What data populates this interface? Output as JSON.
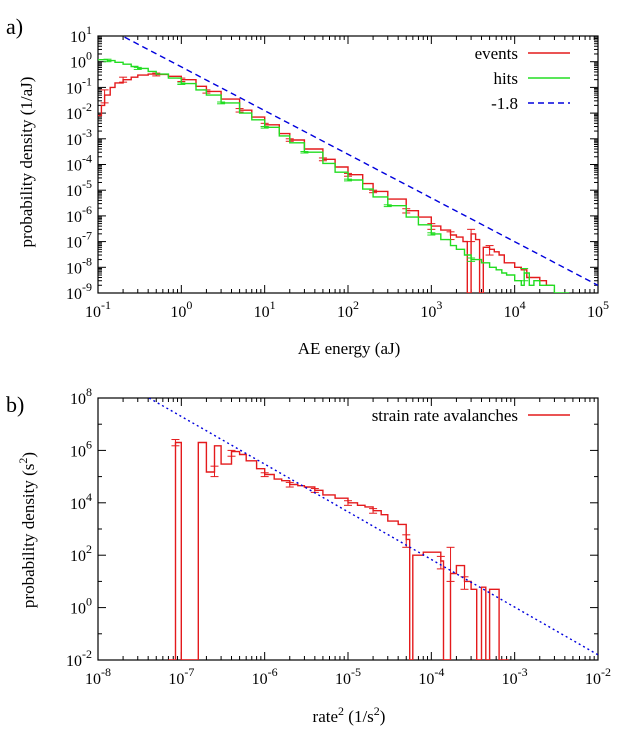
{
  "panels": [
    {
      "label": "a)",
      "xlabel": "AE energy (aJ)",
      "ylabel": "probability density (1/aJ)",
      "xlabel_sup": "",
      "xlabel_suffix": "",
      "ylabel_sup": "",
      "ylabel_suffix": ""
    },
    {
      "label": "b)",
      "xlabel": "rate",
      "xlabel_sup": "2",
      "xlabel_suffix": " (1/s",
      "xlabel_suffix_sup": "2",
      "xlabel_suffix_end": ")",
      "ylabel": "probability density (s",
      "ylabel_sup": "2",
      "ylabel_suffix": ")"
    }
  ],
  "chart_data": [
    {
      "type": "line",
      "panel": "a)",
      "xscale": "log",
      "yscale": "log",
      "xlim": [
        0.1,
        100000
      ],
      "ylim": [
        1e-09,
        10
      ],
      "xticks": [
        {
          "base": "10",
          "exp": "-1",
          "value": 0.1
        },
        {
          "base": "10",
          "exp": "0",
          "value": 1
        },
        {
          "base": "10",
          "exp": "1",
          "value": 10
        },
        {
          "base": "10",
          "exp": "2",
          "value": 100
        },
        {
          "base": "10",
          "exp": "3",
          "value": 1000
        },
        {
          "base": "10",
          "exp": "4",
          "value": 10000
        },
        {
          "base": "10",
          "exp": "5",
          "value": 100000
        }
      ],
      "yticks": [
        {
          "base": "10",
          "exp": "-9",
          "value": 1e-09
        },
        {
          "base": "10",
          "exp": "-8",
          "value": 1e-08
        },
        {
          "base": "10",
          "exp": "-7",
          "value": 1e-07
        },
        {
          "base": "10",
          "exp": "-6",
          "value": 1e-06
        },
        {
          "base": "10",
          "exp": "-5",
          "value": 1e-05
        },
        {
          "base": "10",
          "exp": "-4",
          "value": 0.0001
        },
        {
          "base": "10",
          "exp": "-3",
          "value": 0.001
        },
        {
          "base": "10",
          "exp": "-2",
          "value": 0.01
        },
        {
          "base": "10",
          "exp": "-1",
          "value": 0.1
        },
        {
          "base": "10",
          "exp": "0",
          "value": 1
        },
        {
          "base": "10",
          "exp": "1",
          "value": 10
        }
      ],
      "legend_position": "top-right",
      "series": [
        {
          "name": "events",
          "style": "step",
          "color": "#e41a1c",
          "x": [
            0.1,
            0.11,
            0.12,
            0.14,
            0.16,
            0.2,
            0.25,
            0.3,
            0.4,
            0.5,
            0.7,
            1,
            1.5,
            2,
            3,
            5,
            7,
            10,
            15,
            20,
            30,
            50,
            70,
            100,
            150,
            200,
            300,
            500,
            700,
            1000,
            1300,
            1700,
            2000,
            2400,
            2700,
            3000,
            3400,
            3800,
            4200,
            5000,
            5700,
            6500,
            7500,
            10000,
            12000,
            14000,
            17000,
            20000,
            24000
          ],
          "y": [
            0.008,
            0.02,
            0.05,
            0.1,
            0.15,
            0.2,
            0.25,
            0.3,
            0.33,
            0.32,
            0.27,
            0.2,
            0.11,
            0.07,
            0.035,
            0.013,
            0.007,
            0.0035,
            0.0016,
            0.0009,
            0.0004,
            0.00016,
            8e-05,
            4e-05,
            1.8e-05,
            9e-06,
            4.5e-06,
            1.6e-06,
            9e-07,
            4e-07,
            2.8e-07,
            1.8e-07,
            1.5e-07,
            1e-07,
            1e-09,
            2e-07,
            1.2e-07,
            1e-09,
            6e-08,
            5e-08,
            4e-08,
            3e-08,
            1.5e-08,
            1e-08,
            8e-09,
            4e-09,
            4e-09,
            3e-09,
            2e-09
          ],
          "error_bars": [
            {
              "x": 0.12,
              "low": 0.025,
              "high": 0.08
            },
            {
              "x": 0.2,
              "low": 0.16,
              "high": 0.25
            },
            {
              "x": 0.5,
              "low": 0.28,
              "high": 0.36
            },
            {
              "x": 1,
              "low": 0.17,
              "high": 0.23
            },
            {
              "x": 2,
              "low": 0.06,
              "high": 0.08
            },
            {
              "x": 5,
              "low": 0.011,
              "high": 0.015
            },
            {
              "x": 10,
              "low": 0.003,
              "high": 0.004
            },
            {
              "x": 20,
              "low": 0.0008,
              "high": 0.001
            },
            {
              "x": 50,
              "low": 0.00014,
              "high": 0.00018
            },
            {
              "x": 100,
              "low": 3.5e-05,
              "high": 4.5e-05
            },
            {
              "x": 200,
              "low": 8e-06,
              "high": 1e-05
            },
            {
              "x": 500,
              "low": 1.3e-06,
              "high": 1.9e-06
            },
            {
              "x": 1000,
              "low": 3e-07,
              "high": 5e-07
            },
            {
              "x": 1700,
              "low": 1.2e-07,
              "high": 2.4e-07
            },
            {
              "x": 3000,
              "low": 1e-07,
              "high": 3e-07
            },
            {
              "x": 5000,
              "low": 3e-08,
              "high": 7e-08
            }
          ]
        },
        {
          "name": "hits",
          "style": "step",
          "color": "#22dd22",
          "x": [
            0.1,
            0.13,
            0.16,
            0.2,
            0.25,
            0.3,
            0.4,
            0.5,
            0.7,
            1,
            1.5,
            2,
            3,
            5,
            7,
            10,
            15,
            20,
            30,
            50,
            70,
            100,
            150,
            200,
            300,
            500,
            700,
            1000,
            1300,
            1700,
            2000,
            2500,
            3000,
            4000,
            5000,
            6000,
            7000,
            8000,
            10000,
            12000,
            13000,
            15000,
            17000,
            20000,
            30000
          ],
          "y": [
            1.2,
            1.1,
            0.95,
            0.8,
            0.65,
            0.55,
            0.42,
            0.33,
            0.23,
            0.14,
            0.08,
            0.05,
            0.025,
            0.01,
            0.0055,
            0.0028,
            0.0013,
            0.0007,
            0.0003,
            0.00011,
            5e-05,
            2.5e-05,
            1.1e-05,
            5.5e-06,
            2.5e-06,
            9e-07,
            4.5e-07,
            2e-07,
            1.2e-07,
            7e-08,
            5e-08,
            3e-08,
            2e-08,
            1.5e-08,
            1e-08,
            8e-09,
            6e-09,
            5e-09,
            3e-09,
            2e-09,
            6e-09,
            2e-09,
            3e-09,
            2e-09,
            1e-09
          ],
          "error_bars": [
            {
              "x": 0.13,
              "low": 1.0,
              "high": 1.25
            },
            {
              "x": 0.3,
              "low": 0.5,
              "high": 0.6
            },
            {
              "x": 1,
              "low": 0.13,
              "high": 0.15
            },
            {
              "x": 3,
              "low": 0.023,
              "high": 0.027
            },
            {
              "x": 10,
              "low": 0.0026,
              "high": 0.003
            },
            {
              "x": 30,
              "low": 0.00028,
              "high": 0.00032
            },
            {
              "x": 100,
              "low": 2.3e-05,
              "high": 2.7e-05
            },
            {
              "x": 300,
              "low": 2.3e-06,
              "high": 2.7e-06
            },
            {
              "x": 1000,
              "low": 1.8e-07,
              "high": 2.2e-07
            },
            {
              "x": 3000,
              "low": 1.7e-08,
              "high": 2.3e-08
            },
            {
              "x": 13000,
              "low": 3e-09,
              "high": 9e-09
            }
          ]
        },
        {
          "name": "-1.8",
          "style": "dashed",
          "color": "#0000dd",
          "x": [
            0.1,
            100000
          ],
          "y": [
            31.4,
            1.98e-09
          ]
        }
      ]
    },
    {
      "type": "line",
      "panel": "b)",
      "xscale": "log",
      "yscale": "log",
      "xlim": [
        1e-08,
        0.01
      ],
      "ylim": [
        0.01,
        100000000
      ],
      "xticks": [
        {
          "base": "10",
          "exp": "-8",
          "value": 1e-08
        },
        {
          "base": "10",
          "exp": "-7",
          "value": 1e-07
        },
        {
          "base": "10",
          "exp": "-6",
          "value": 1e-06
        },
        {
          "base": "10",
          "exp": "-5",
          "value": 1e-05
        },
        {
          "base": "10",
          "exp": "-4",
          "value": 0.0001
        },
        {
          "base": "10",
          "exp": "-3",
          "value": 0.001
        },
        {
          "base": "10",
          "exp": "-2",
          "value": 0.01
        }
      ],
      "yticks": [
        {
          "base": "10",
          "exp": "-2",
          "value": 0.01
        },
        {
          "base": "10",
          "exp": "0",
          "value": 1
        },
        {
          "base": "10",
          "exp": "2",
          "value": 100
        },
        {
          "base": "10",
          "exp": "4",
          "value": 10000
        },
        {
          "base": "10",
          "exp": "6",
          "value": 1000000
        },
        {
          "base": "10",
          "exp": "8",
          "value": 100000000
        }
      ],
      "legend_position": "top-right",
      "series": [
        {
          "name": "strain rate avalanches",
          "style": "step",
          "color": "#e41a1c",
          "x": [
            7e-08,
            8.5e-08,
            1e-07,
            1.3e-07,
            1.6e-07,
            2e-07,
            2.5e-07,
            3e-07,
            4e-07,
            5e-07,
            6e-07,
            8e-07,
            1e-06,
            1.3e-06,
            1.6e-06,
            2e-06,
            2.5e-06,
            3e-06,
            4e-06,
            5e-06,
            7e-06,
            1e-05,
            1.3e-05,
            1.6e-05,
            2e-05,
            2.5e-05,
            3e-05,
            4e-05,
            5e-05,
            5.5e-05,
            6e-05,
            8e-05,
            0.0001,
            0.00013,
            0.00014,
            0.00017,
            0.0002,
            0.00025,
            0.0003,
            0.00035,
            0.0004,
            0.00045,
            0.0005,
            0.00065
          ],
          "y": [
            0.01,
            2000000,
            0.01,
            0.01,
            2000000,
            150000,
            1500000,
            300000,
            900000,
            700000,
            400000,
            200000,
            120000,
            80000,
            70000,
            50000,
            45000,
            40000,
            30000,
            20000,
            15000,
            10000,
            8000,
            7000,
            5000,
            3500,
            2000,
            1500,
            400,
            0.01,
            100,
            130,
            130,
            60,
            0.01,
            20,
            40,
            10,
            5,
            0.01,
            6,
            0.01,
            5,
            0.01
          ],
          "error_bars": [
            {
              "x": 8.5e-08,
              "low": 1500000,
              "high": 2600000
            },
            {
              "x": 2.5e-07,
              "low": 100000,
              "high": 250000
            },
            {
              "x": 4e-07,
              "low": 600000,
              "high": 1000000
            },
            {
              "x": 1e-06,
              "low": 100000,
              "high": 140000
            },
            {
              "x": 2e-06,
              "low": 40000,
              "high": 60000
            },
            {
              "x": 4e-06,
              "low": 25000,
              "high": 35000
            },
            {
              "x": 1e-05,
              "low": 8000,
              "high": 12000
            },
            {
              "x": 2e-05,
              "low": 4000,
              "high": 6000
            },
            {
              "x": 5e-05,
              "low": 200,
              "high": 600
            },
            {
              "x": 0.00013,
              "low": 30,
              "high": 90
            },
            {
              "x": 0.00017,
              "low": 10,
              "high": 200
            },
            {
              "x": 0.00025,
              "low": 5,
              "high": 15
            }
          ]
        },
        {
          "name": "",
          "style": "dotted",
          "color": "#0000dd",
          "x": [
            4.1e-08,
            0.01
          ],
          "y": [
            100000000,
            0.0158
          ]
        }
      ]
    }
  ]
}
